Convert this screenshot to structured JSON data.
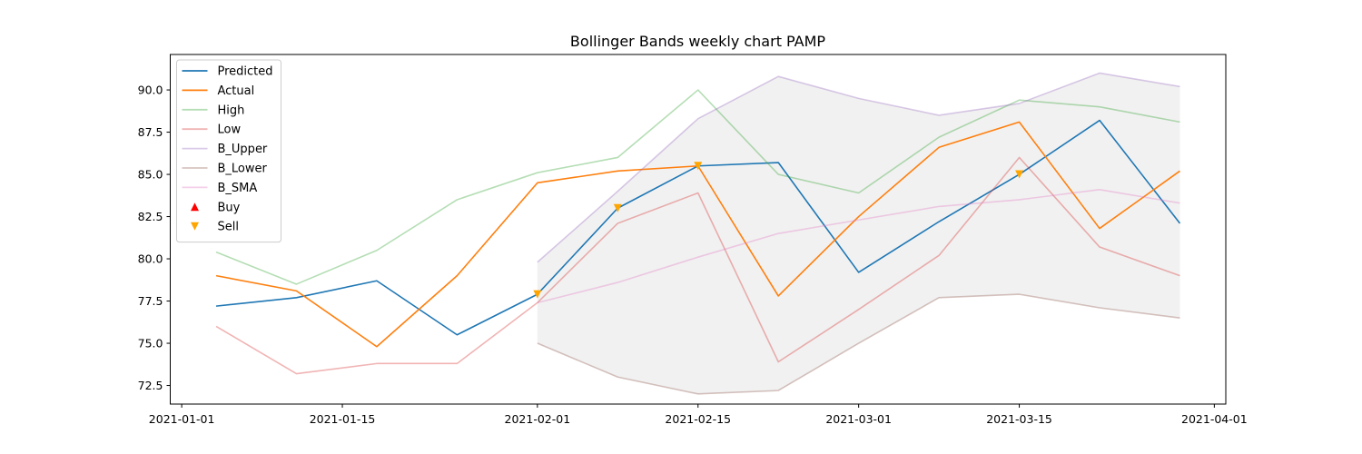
{
  "chart_data": {
    "type": "line",
    "title": "Bollinger Bands weekly chart PAMP",
    "xlabel": "",
    "ylabel": "",
    "x": [
      "2021-01-04",
      "2021-01-11",
      "2021-01-18",
      "2021-01-25",
      "2021-02-01",
      "2021-02-08",
      "2021-02-15",
      "2021-02-22",
      "2021-03-01",
      "2021-03-08",
      "2021-03-15",
      "2021-03-22",
      "2021-03-29"
    ],
    "xlim": [
      "2020-12-31",
      "2021-04-02"
    ],
    "ylim": [
      71.4,
      92.1
    ],
    "x_ticks": [
      "2021-01-01",
      "2021-01-15",
      "2021-02-01",
      "2021-02-15",
      "2021-03-01",
      "2021-03-15",
      "2021-04-01"
    ],
    "y_ticks": [
      "72.5",
      "75.0",
      "77.5",
      "80.0",
      "82.5",
      "85.0",
      "87.5",
      "90.0"
    ],
    "legend_position": "upper-left",
    "series": [
      {
        "name": "Predicted",
        "color": "#1f77b4",
        "alpha": 1.0,
        "values": [
          77.2,
          77.7,
          78.7,
          75.5,
          77.9,
          83.0,
          85.5,
          85.7,
          79.2,
          82.2,
          85.0,
          88.2,
          82.1
        ]
      },
      {
        "name": "Actual",
        "color": "#ff7f0e",
        "alpha": 1.0,
        "values": [
          79.0,
          78.1,
          74.8,
          79.0,
          84.5,
          85.2,
          85.5,
          77.8,
          82.5,
          86.6,
          88.1,
          81.8,
          85.2
        ]
      },
      {
        "name": "High",
        "color": "#2ca02c",
        "alpha": 0.35,
        "values": [
          80.4,
          78.5,
          80.5,
          83.5,
          85.1,
          86.0,
          90.0,
          85.0,
          83.9,
          87.2,
          89.4,
          89.0,
          88.1
        ]
      },
      {
        "name": "Low",
        "color": "#d62728",
        "alpha": 0.35,
        "values": [
          76.0,
          73.2,
          73.8,
          73.8,
          77.4,
          82.1,
          83.9,
          73.9,
          77.0,
          80.2,
          86.0,
          80.7,
          79.0
        ]
      },
      {
        "name": "B_Upper",
        "color": "#9467bd",
        "alpha": 0.35,
        "values": [
          null,
          null,
          null,
          null,
          79.8,
          84.0,
          88.3,
          90.8,
          89.5,
          88.5,
          89.2,
          91.0,
          90.2
        ]
      },
      {
        "name": "B_Lower",
        "color": "#8c564b",
        "alpha": 0.35,
        "values": [
          null,
          null,
          null,
          null,
          75.0,
          73.0,
          72.0,
          72.2,
          75.0,
          77.7,
          77.9,
          77.1,
          76.5
        ]
      },
      {
        "name": "B_SMA",
        "color": "#e377c2",
        "alpha": 0.35,
        "values": [
          null,
          null,
          null,
          null,
          77.4,
          78.6,
          80.1,
          81.5,
          82.3,
          83.1,
          83.5,
          84.1,
          83.3
        ]
      }
    ],
    "markers": [
      {
        "name": "Buy",
        "color": "#ff0000",
        "symbol": "triangle-up",
        "points": []
      },
      {
        "name": "Sell",
        "color": "#ffa500",
        "symbol": "triangle-down",
        "points": [
          {
            "x": "2021-02-01",
            "y": 77.9
          },
          {
            "x": "2021-02-08",
            "y": 83.0
          },
          {
            "x": "2021-02-15",
            "y": 85.5
          },
          {
            "x": "2021-03-15",
            "y": 85.0
          }
        ]
      }
    ],
    "band_fill": {
      "upper": "B_Upper",
      "lower": "B_Lower",
      "color": "#e0e0e0",
      "alpha": 0.45
    }
  }
}
